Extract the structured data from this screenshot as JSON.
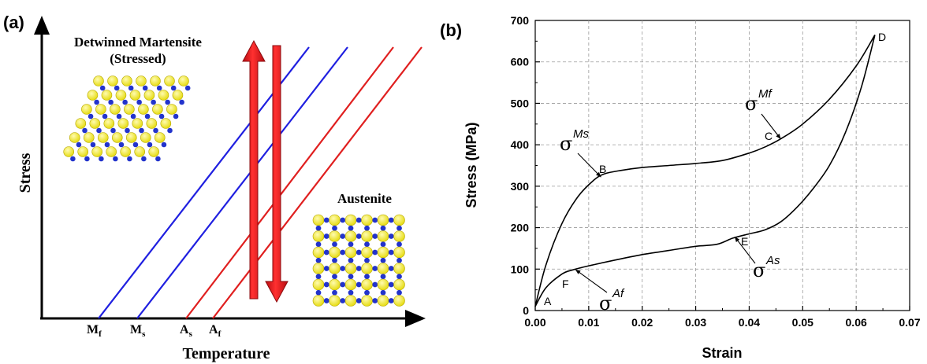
{
  "panel_a": {
    "label": "(a)",
    "ylabel": "Stress",
    "xlabel": "Temperature",
    "martensite_label_line1": "Detwinned Martensite",
    "martensite_label_line2": "(Stressed)",
    "austenite_label": "Austenite",
    "tick_labels": {
      "mf_main": "M",
      "mf_sub": "f",
      "ms_main": "M",
      "ms_sub": "s",
      "as_main": "A",
      "as_sub": "s",
      "af_main": "A",
      "af_sub": "f"
    },
    "colors": {
      "martensite_lines": "#1f1fe0",
      "austenite_lines": "#e01f1f",
      "arrow_fill": "#e8141a",
      "atom_large": "#f3ec1c",
      "atom_small": "#2233cc"
    },
    "icons": [
      "stress-up-arrow",
      "stress-down-arrow",
      "lattice-martensite",
      "lattice-austenite"
    ]
  },
  "panel_b": {
    "label": "(b)",
    "chart_data": {
      "type": "line",
      "title": "",
      "xlabel": "Strain",
      "ylabel": "Stress (MPa)",
      "xlim": [
        0.0,
        0.07
      ],
      "ylim": [
        0,
        700
      ],
      "xticks": [
        "0.00",
        "0.01",
        "0.02",
        "0.03",
        "0.04",
        "0.05",
        "0.06",
        "0.07"
      ],
      "yticks": [
        "0",
        "100",
        "200",
        "300",
        "400",
        "500",
        "600",
        "700"
      ],
      "grid": true,
      "series": [
        {
          "name": "",
          "x": [
            0.0,
            0.002,
            0.005,
            0.008,
            0.011,
            0.013,
            0.016,
            0.02,
            0.025,
            0.03,
            0.035,
            0.04,
            0.043,
            0.046,
            0.05,
            0.055,
            0.06,
            0.0635
          ],
          "y": [
            10,
            110,
            210,
            275,
            315,
            330,
            338,
            345,
            350,
            355,
            362,
            380,
            395,
            415,
            450,
            510,
            590,
            665
          ]
        },
        {
          "name": "",
          "x": [
            0.0635,
            0.061,
            0.058,
            0.055,
            0.052,
            0.049,
            0.046,
            0.043,
            0.04,
            0.037,
            0.034,
            0.03,
            0.025,
            0.02,
            0.015,
            0.01,
            0.007,
            0.005,
            0.002,
            0.0
          ],
          "y": [
            665,
            540,
            430,
            350,
            295,
            250,
            215,
            195,
            185,
            175,
            160,
            155,
            145,
            135,
            122,
            108,
            98,
            88,
            55,
            10
          ]
        }
      ],
      "annotations": [
        {
          "text": "A",
          "x": 0.001,
          "y": 10
        },
        {
          "text": "B",
          "x": 0.013,
          "y": 330
        },
        {
          "text": "C",
          "x": 0.046,
          "y": 415
        },
        {
          "text": "D",
          "x": 0.0635,
          "y": 665
        },
        {
          "text": "E",
          "x": 0.037,
          "y": 175
        },
        {
          "text": "F",
          "x": 0.007,
          "y": 98
        },
        {
          "text": "σ",
          "sup": "Ms",
          "target": "B"
        },
        {
          "text": "σ",
          "sup": "Mf",
          "target": "C"
        },
        {
          "text": "σ",
          "sup": "As",
          "target": "E"
        },
        {
          "text": "σ",
          "sup": "Af",
          "target": "F"
        }
      ]
    },
    "point_labels": {
      "A": "A",
      "B": "B",
      "C": "C",
      "D": "D",
      "E": "E",
      "F": "F"
    },
    "sigma": {
      "symbol": "σ",
      "ms": "Ms",
      "mf": "Mf",
      "as": "As",
      "af": "Af"
    }
  }
}
